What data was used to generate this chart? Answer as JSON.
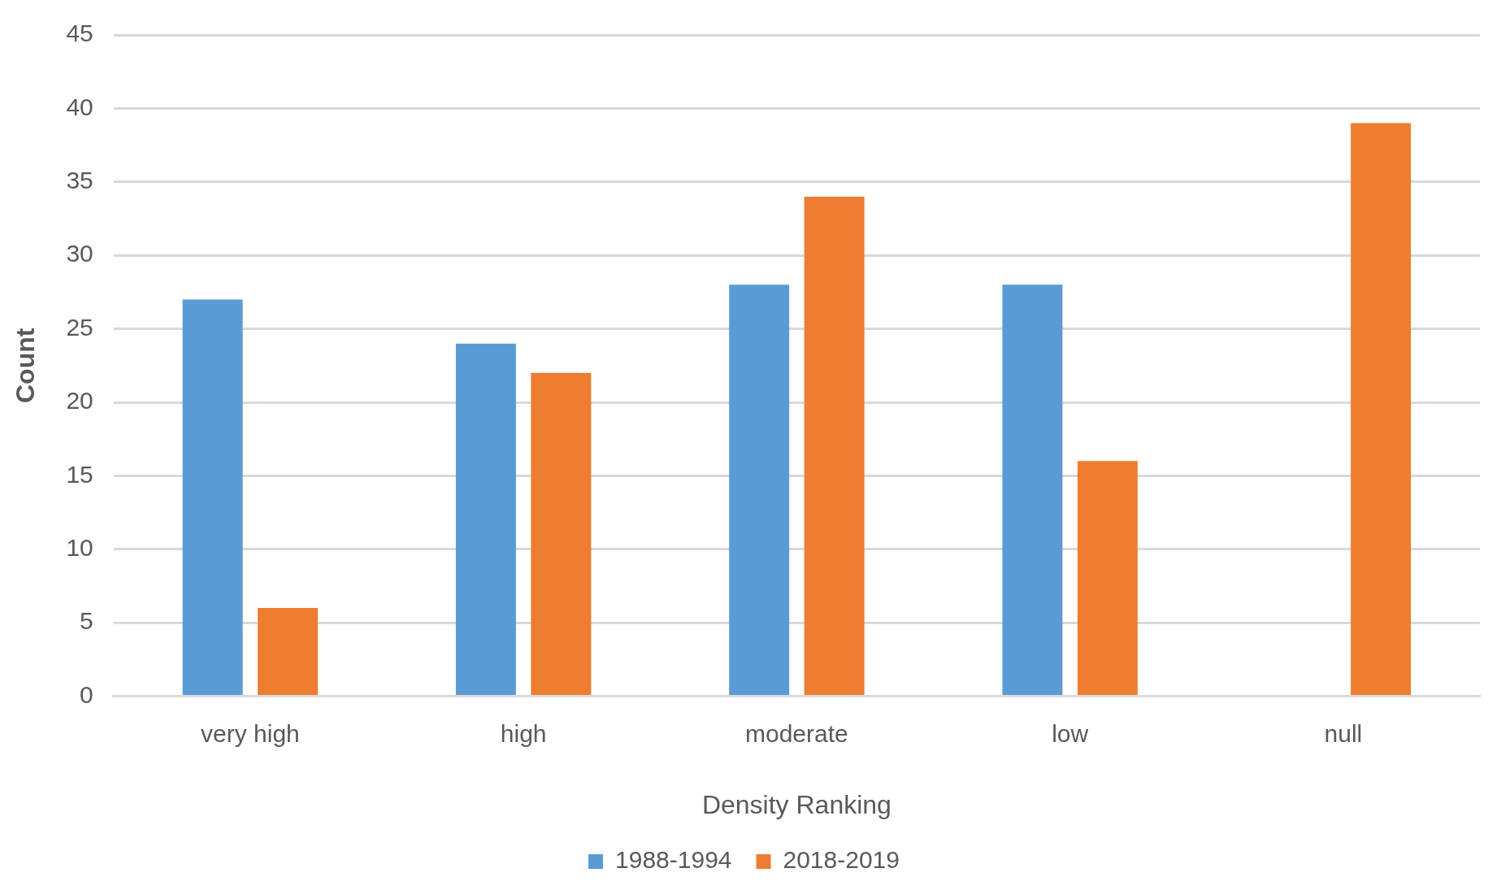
{
  "chart_data": {
    "type": "bar",
    "xlabel": "Density Ranking",
    "ylabel": "Count",
    "categories": [
      "very high",
      "high",
      "moderate",
      "low",
      "null"
    ],
    "series": [
      {
        "name": "1988-1994",
        "color": "#5b9bd5",
        "values": [
          27,
          24,
          28,
          28,
          0
        ]
      },
      {
        "name": "2018-2019",
        "color": "#ed7d31",
        "values": [
          6,
          22,
          34,
          16,
          39
        ]
      }
    ],
    "ylim": [
      0,
      45
    ],
    "yticks": [
      0,
      5,
      10,
      15,
      20,
      25,
      30,
      35,
      40,
      45
    ],
    "grid": "y",
    "legend": "bottom"
  }
}
